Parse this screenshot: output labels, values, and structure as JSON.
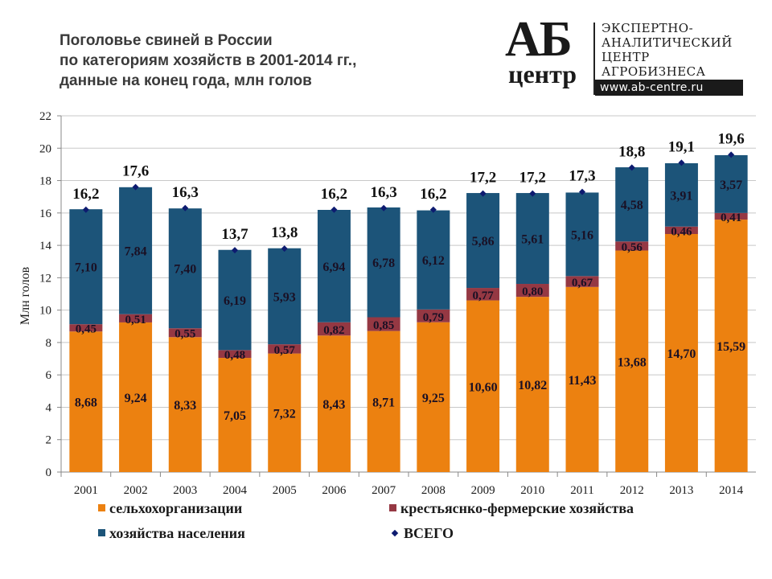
{
  "title_lines": [
    "Поголовье свиней в России",
    "по категориям хозяйств в 2001-2014 гг.,",
    "данные на конец года, млн голов"
  ],
  "logo": {
    "mark_top": "АБ",
    "mark_bottom": "центр",
    "text_lines": [
      "ЭКСПЕРТНО-",
      "АНАЛИТИЧЕСКИЙ",
      "ЦЕНТР",
      "АГРОБИЗНЕСА"
    ],
    "url": "www.ab-centre.ru"
  },
  "colors": {
    "agri_orgs": "#ec8110",
    "farms": "#953843",
    "households": "#1c5479",
    "total_marker": "#0d1b70",
    "grid": "#c8c8c8"
  },
  "chart_data": {
    "type": "bar",
    "stacked": true,
    "title": "Поголовье свиней в России по категориям хозяйств в 2001-2014 гг., данные на конец года, млн голов",
    "xlabel": "",
    "ylabel": "Млн голов",
    "ylim": [
      0,
      22
    ],
    "yticks": [
      0,
      2,
      4,
      6,
      8,
      10,
      12,
      14,
      16,
      18,
      20,
      22
    ],
    "grid": true,
    "legend_position": "bottom",
    "categories": [
      "2001",
      "2002",
      "2003",
      "2004",
      "2005",
      "2006",
      "2007",
      "2008",
      "2009",
      "2010",
      "2011",
      "2012",
      "2013",
      "2014"
    ],
    "series": [
      {
        "key": "agri_orgs",
        "name": "сельхохорганизации",
        "values": [
          8.68,
          9.24,
          8.33,
          7.05,
          7.32,
          8.43,
          8.71,
          9.25,
          10.6,
          10.82,
          11.43,
          13.68,
          14.7,
          15.59
        ],
        "labels": [
          "8,68",
          "9,24",
          "8,33",
          "7,05",
          "7,32",
          "8,43",
          "8,71",
          "9,25",
          "10,60",
          "10,82",
          "11,43",
          "13,68",
          "14,70",
          "15,59"
        ]
      },
      {
        "key": "farms",
        "name": "крестьяснко-фермерские хозяйства",
        "values": [
          0.45,
          0.51,
          0.55,
          0.48,
          0.57,
          0.82,
          0.85,
          0.79,
          0.77,
          0.8,
          0.67,
          0.56,
          0.46,
          0.41
        ],
        "labels": [
          "0,45",
          "0,51",
          "0,55",
          "0,48",
          "0,57",
          "0,82",
          "0,85",
          "0,79",
          "0,77",
          "0,80",
          "0,67",
          "0,56",
          "0,46",
          "0,41"
        ]
      },
      {
        "key": "households",
        "name": "хозяйства населения",
        "values": [
          7.1,
          7.84,
          7.4,
          6.19,
          5.93,
          6.94,
          6.78,
          6.12,
          5.86,
          5.61,
          5.16,
          4.58,
          3.91,
          3.57
        ],
        "labels": [
          "7,10",
          "7,84",
          "7,40",
          "6,19",
          "5,93",
          "6,94",
          "6,78",
          "6,12",
          "5,86",
          "5,61",
          "5,16",
          "4,58",
          "3,91",
          "3,57"
        ]
      }
    ],
    "total": {
      "name": "ВСЕГО",
      "values": [
        16.2,
        17.6,
        16.3,
        13.7,
        13.8,
        16.2,
        16.3,
        16.2,
        17.2,
        17.2,
        17.3,
        18.8,
        19.1,
        19.6
      ],
      "labels": [
        "16,2",
        "17,6",
        "16,3",
        "13,7",
        "13,8",
        "16,2",
        "16,3",
        "16,2",
        "17,2",
        "17,2",
        "17,3",
        "18,8",
        "19,1",
        "19,6"
      ]
    }
  }
}
